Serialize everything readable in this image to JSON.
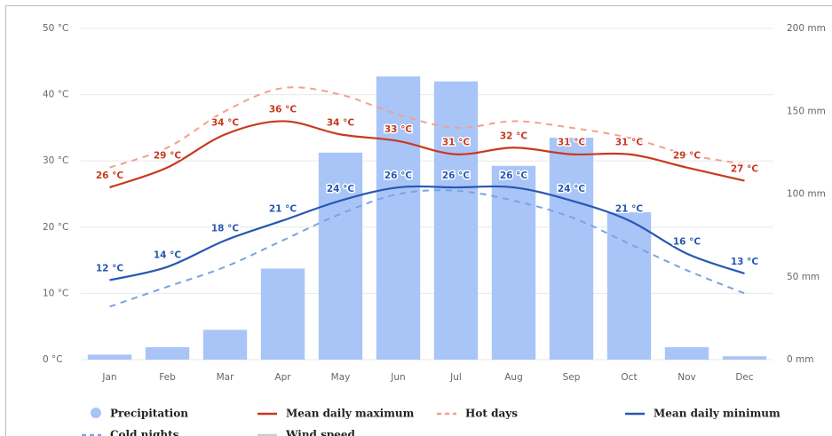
{
  "chart_data": {
    "type": "bar-line",
    "categories": [
      "Jan",
      "Feb",
      "Mar",
      "Apr",
      "May",
      "Jun",
      "Jul",
      "Aug",
      "Sep",
      "Oct",
      "Nov",
      "Dec"
    ],
    "ylim": [
      0,
      50
    ],
    "yticks": [
      {
        "value": 0,
        "label": "0 °C"
      },
      {
        "value": 10,
        "label": "10 °C"
      },
      {
        "value": 20,
        "label": "20 °C"
      },
      {
        "value": 30,
        "label": "30 °C"
      },
      {
        "value": 40,
        "label": "40 °C"
      },
      {
        "value": 50,
        "label": "50 °C"
      }
    ],
    "y2lim": [
      0,
      200
    ],
    "y2ticks": [
      {
        "value": 0,
        "label": "0 mm"
      },
      {
        "value": 50,
        "label": "50 mm"
      },
      {
        "value": 100,
        "label": "100 mm"
      },
      {
        "value": 150,
        "label": "150 mm"
      },
      {
        "value": 200,
        "label": "200 mm"
      }
    ],
    "grid": true,
    "series": [
      {
        "name": "Precipitation",
        "type": "bar",
        "axis": "y2",
        "color": "#a9c5f7",
        "values": [
          3,
          7.5,
          18,
          55,
          125,
          171,
          168,
          117,
          134,
          89,
          7.5,
          2
        ]
      },
      {
        "name": "Mean daily maximum",
        "type": "line",
        "color": "#c8391e",
        "dash": false,
        "values": [
          26,
          29,
          34,
          36,
          34,
          33,
          31,
          32,
          31,
          31,
          29,
          27
        ],
        "value_labels": [
          "26 °C",
          "29 °C",
          "34 °C",
          "36 °C",
          "34 °C",
          "33 °C",
          "31 °C",
          "32 °C",
          "31 °C",
          "31 °C",
          "29 °C",
          "27 °C"
        ]
      },
      {
        "name": "Hot days",
        "type": "line",
        "color": "#f3a08c",
        "dash": true,
        "values": [
          29,
          32,
          37.5,
          41,
          40,
          37,
          35,
          36,
          35,
          33.5,
          31,
          29.5
        ]
      },
      {
        "name": "Mean daily minimum",
        "type": "line",
        "color": "#2757b3",
        "dash": false,
        "values": [
          12,
          14,
          18,
          21,
          24,
          26,
          26,
          26,
          24,
          21,
          16,
          13
        ],
        "value_labels": [
          "12 °C",
          "14 °C",
          "18 °C",
          "21 °C",
          "24 °C",
          "26 °C",
          "26 °C",
          "26 °C",
          "24 °C",
          "21 °C",
          "16 °C",
          "13 °C"
        ]
      },
      {
        "name": "Cold nights",
        "type": "line",
        "color": "#7aa2e3",
        "dash": true,
        "values": [
          8,
          11,
          14,
          18,
          22,
          25,
          25.5,
          24,
          21.5,
          17.5,
          13.5,
          10
        ]
      },
      {
        "name": "Wind speed",
        "type": "line",
        "color": "#cccccc",
        "dash": false,
        "inactive": true,
        "values": [
          null,
          null,
          null,
          null,
          null,
          null,
          null,
          null,
          null,
          null,
          null,
          null
        ]
      }
    ]
  }
}
